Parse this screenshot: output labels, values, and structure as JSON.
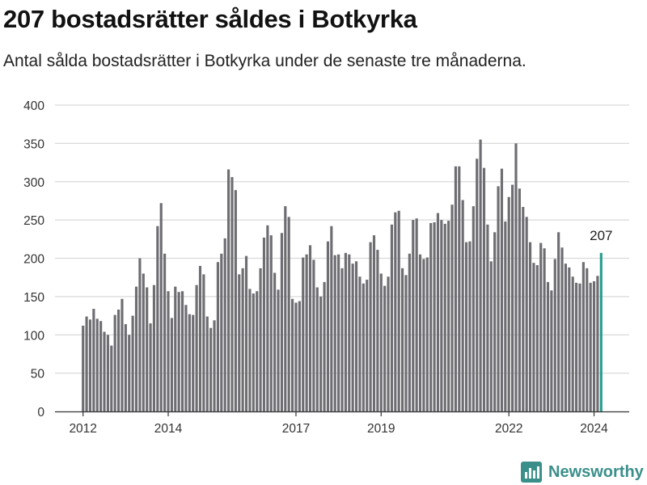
{
  "header": {
    "title": "207 bostadsrätter såldes i Botkyrka",
    "subtitle": "Antal sålda bostadsrätter i Botkyrka under de senaste tre månaderna."
  },
  "brand": {
    "name": "Newsworthy",
    "icon": "newsworthy-logo-icon",
    "color": "#3b8f8a"
  },
  "chart_data": {
    "type": "bar",
    "title": "",
    "xlabel": "",
    "ylabel": "",
    "ylim": [
      0,
      400
    ],
    "yticks": [
      0,
      50,
      100,
      150,
      200,
      250,
      300,
      350,
      400
    ],
    "grid": true,
    "bar_color": "#6e6d72",
    "highlight_color": "#2a9d8f",
    "highlight_label": "207",
    "start": "2012-01",
    "end": "2024-03",
    "xtick_labels": [
      {
        "label": "2012",
        "date": "2012-01"
      },
      {
        "label": "2014",
        "date": "2014-01"
      },
      {
        "label": "2017",
        "date": "2017-01"
      },
      {
        "label": "2019",
        "date": "2019-01"
      },
      {
        "label": "2022",
        "date": "2022-01"
      },
      {
        "label": "2024",
        "date": "2024-01"
      }
    ],
    "values": [
      112,
      124,
      120,
      134,
      121,
      118,
      104,
      100,
      86,
      126,
      133,
      147,
      114,
      100,
      125,
      163,
      200,
      180,
      162,
      115,
      165,
      242,
      272,
      206,
      157,
      122,
      163,
      156,
      157,
      139,
      127,
      126,
      165,
      190,
      179,
      124,
      109,
      119,
      195,
      206,
      226,
      316,
      306,
      289,
      179,
      187,
      203,
      160,
      154,
      157,
      187,
      227,
      243,
      230,
      181,
      159,
      233,
      268,
      254,
      147,
      142,
      144,
      201,
      205,
      217,
      198,
      162,
      150,
      169,
      222,
      242,
      204,
      205,
      187,
      207,
      205,
      193,
      196,
      176,
      167,
      172,
      221,
      230,
      211,
      180,
      164,
      176,
      244,
      260,
      262,
      187,
      178,
      206,
      250,
      252,
      205,
      199,
      201,
      246,
      247,
      259,
      250,
      245,
      249,
      270,
      320,
      320,
      276,
      221,
      222,
      268,
      330,
      355,
      318,
      244,
      196,
      234,
      294,
      317,
      248,
      280,
      296,
      350,
      291,
      267,
      254,
      221,
      194,
      191,
      220,
      213,
      169,
      158,
      199,
      234,
      214,
      193,
      188,
      176,
      168,
      167,
      195,
      187,
      168,
      170,
      177,
      207
    ]
  }
}
